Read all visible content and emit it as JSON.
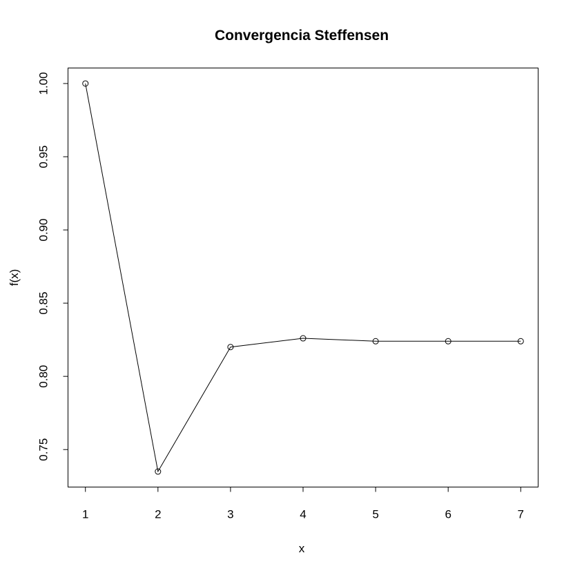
{
  "chart_data": {
    "type": "line",
    "title": "Convergencia Steffensen",
    "xlabel": "x",
    "ylabel": "f(x)",
    "x": [
      1,
      2,
      3,
      4,
      5,
      6,
      7
    ],
    "series": [
      {
        "values": [
          1.0,
          0.735,
          0.82,
          0.826,
          0.824,
          0.824,
          0.824
        ]
      }
    ],
    "xlim": [
      0.76,
      7.24
    ],
    "ylim": [
      0.7244,
      1.0106
    ],
    "xticks": [
      "1",
      "2",
      "3",
      "4",
      "5",
      "6",
      "7"
    ],
    "yticks": [
      "0.75",
      "0.80",
      "0.85",
      "0.90",
      "0.95",
      "1.00"
    ],
    "markers": "open-circle",
    "grid": false
  }
}
